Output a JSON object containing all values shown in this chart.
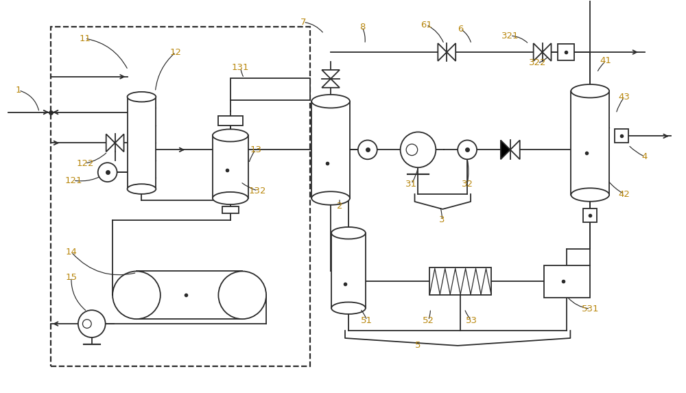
{
  "bg_color": "#ffffff",
  "lc": "#2a2a2a",
  "label_color": "#b8860b",
  "lw": 1.3,
  "fig_w": 10.0,
  "fig_h": 5.73
}
